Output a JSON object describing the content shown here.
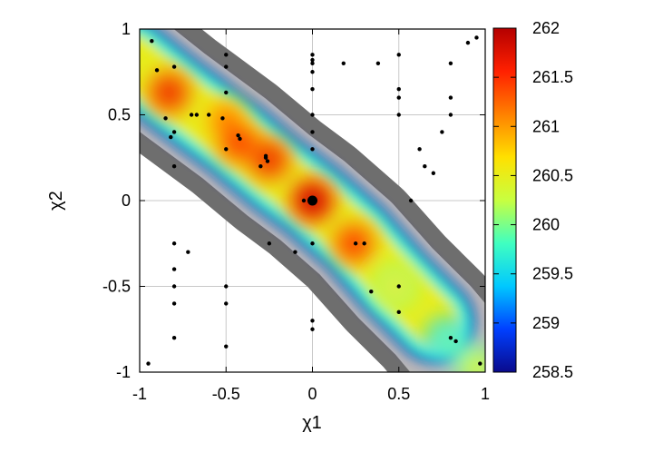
{
  "chart_data": {
    "type": "heatmap",
    "title": "",
    "xlabel": "χ1",
    "ylabel": "χ2",
    "xlim": [
      -1,
      1
    ],
    "ylim": [
      -1,
      1
    ],
    "xticks": [
      "-1",
      "-0.5",
      "0",
      "0.5",
      "1"
    ],
    "yticks": [
      "1",
      "0.5",
      "0",
      "-0.5",
      "-1"
    ],
    "grid": true,
    "colorbar": {
      "range": [
        258.5,
        262
      ],
      "ticks": [
        "262",
        "261.5",
        "261",
        "260.5",
        "260",
        "259.5",
        "259",
        "258.5"
      ],
      "colormap": [
        "#0a0a8c",
        "#0040ff",
        "#00c8ff",
        "#40ffc0",
        "#c8ff40",
        "#ffe000",
        "#ff8000",
        "#ff2000",
        "#b40000"
      ]
    },
    "regions": {
      "band_color_inner": "#b8b8b8",
      "band_color_outer": "#6e6e6e",
      "background": "#ffffff"
    },
    "hotspots": [
      {
        "x": -0.83,
        "y": 0.63,
        "value": 261.7
      },
      {
        "x": -0.5,
        "y": 0.47,
        "value": 261.3
      },
      {
        "x": -0.43,
        "y": 0.34,
        "value": 261.6
      },
      {
        "x": -0.25,
        "y": 0.24,
        "value": 261.7
      },
      {
        "x": 0.0,
        "y": 0.0,
        "value": 262.0
      },
      {
        "x": 0.24,
        "y": -0.25,
        "value": 261.6
      },
      {
        "x": 0.48,
        "y": -0.5,
        "value": 260.6
      },
      {
        "x": 0.78,
        "y": -0.81,
        "value": 260.0
      },
      {
        "x": 0.95,
        "y": -0.97,
        "value": 260.5
      }
    ],
    "points": [
      [
        -0.95,
        -0.95
      ],
      [
        -0.93,
        0.93
      ],
      [
        -0.9,
        0.76
      ],
      [
        -0.85,
        0.48
      ],
      [
        -0.82,
        0.37
      ],
      [
        -0.8,
        0.78
      ],
      [
        -0.8,
        0.4
      ],
      [
        -0.8,
        0.2
      ],
      [
        -0.8,
        -0.25
      ],
      [
        -0.8,
        -0.4
      ],
      [
        -0.8,
        -0.5
      ],
      [
        -0.8,
        -0.6
      ],
      [
        -0.8,
        -0.8
      ],
      [
        -0.72,
        -0.3
      ],
      [
        -0.7,
        0.5
      ],
      [
        -0.67,
        0.5
      ],
      [
        -0.6,
        0.5
      ],
      [
        -0.52,
        0.48
      ],
      [
        -0.5,
        0.85
      ],
      [
        -0.5,
        0.78
      ],
      [
        -0.5,
        0.63
      ],
      [
        -0.5,
        0.3
      ],
      [
        -0.5,
        -0.5
      ],
      [
        -0.5,
        -0.6
      ],
      [
        -0.5,
        -0.85
      ],
      [
        -0.43,
        0.38
      ],
      [
        -0.42,
        0.36
      ],
      [
        -0.3,
        0.2
      ],
      [
        -0.27,
        0.26
      ],
      [
        -0.27,
        0.25
      ],
      [
        -0.26,
        0.23
      ],
      [
        -0.25,
        -0.25
      ],
      [
        -0.1,
        -0.3
      ],
      [
        -0.05,
        0.0
      ],
      [
        0.0,
        0.85
      ],
      [
        0.0,
        0.82
      ],
      [
        0.0,
        0.8
      ],
      [
        0.0,
        0.75
      ],
      [
        0.0,
        0.65
      ],
      [
        0.0,
        0.5
      ],
      [
        0.0,
        0.4
      ],
      [
        0.0,
        0.3
      ],
      [
        0.0,
        0.0
      ],
      [
        0.0,
        -0.25
      ],
      [
        0.0,
        -0.7
      ],
      [
        0.0,
        -0.75
      ],
      [
        0.18,
        0.8
      ],
      [
        0.25,
        -0.25
      ],
      [
        0.3,
        -0.25
      ],
      [
        0.34,
        -0.53
      ],
      [
        0.38,
        0.8
      ],
      [
        0.5,
        0.85
      ],
      [
        0.5,
        0.65
      ],
      [
        0.5,
        0.6
      ],
      [
        0.5,
        0.5
      ],
      [
        0.5,
        -0.5
      ],
      [
        0.5,
        -0.65
      ],
      [
        0.57,
        0.0
      ],
      [
        0.62,
        0.3
      ],
      [
        0.65,
        0.2
      ],
      [
        0.7,
        0.16
      ],
      [
        0.75,
        0.4
      ],
      [
        0.8,
        0.8
      ],
      [
        0.8,
        0.6
      ],
      [
        0.8,
        0.5
      ],
      [
        0.8,
        -0.8
      ],
      [
        0.83,
        -0.82
      ],
      [
        0.9,
        0.92
      ],
      [
        0.95,
        0.95
      ],
      [
        0.97,
        -0.95
      ]
    ]
  }
}
